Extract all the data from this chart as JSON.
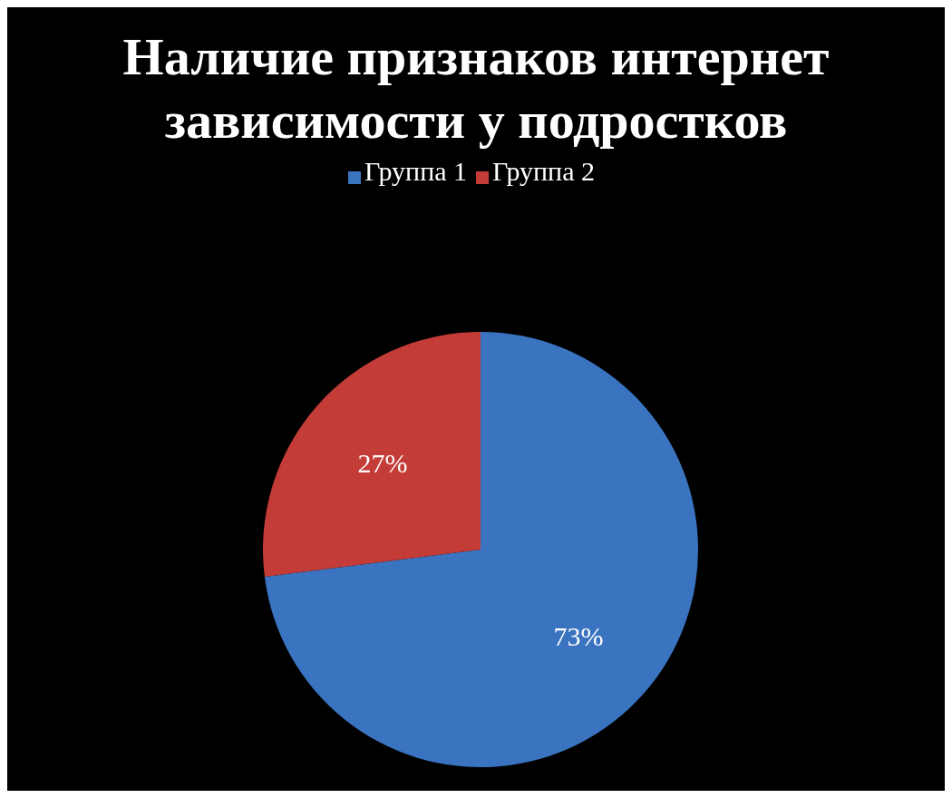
{
  "chart_data": {
    "type": "pie",
    "title": "Наличие признаков интернет зависимости у подростков",
    "categories": [
      "Группа 1",
      "Группа 2"
    ],
    "values": [
      73,
      27
    ],
    "colors": [
      "#3a73c0",
      "#c43c37"
    ],
    "value_labels": [
      "73%",
      "27%"
    ],
    "legend": "top"
  }
}
